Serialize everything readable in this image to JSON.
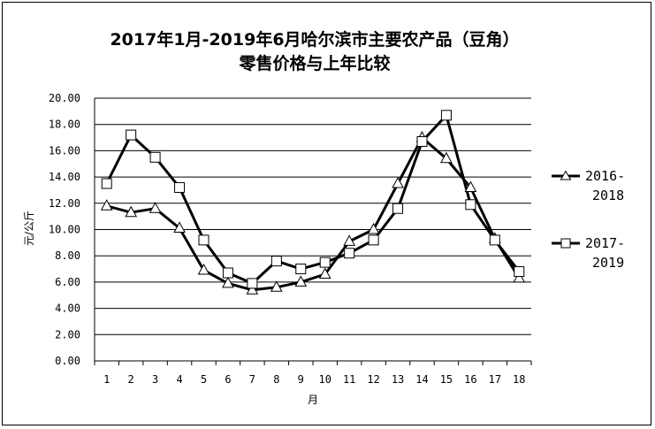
{
  "chart_data": {
    "type": "line",
    "title_line1": "2017年1月-2019年6月哈尔滨市主要农产品（豆角）",
    "title_line2": "零售价格与上年比较",
    "xlabel": "月",
    "ylabel": "元/公斤",
    "ylim": [
      0,
      20
    ],
    "yticks": [
      "0.00",
      "2.00",
      "4.00",
      "6.00",
      "8.00",
      "10.00",
      "12.00",
      "14.00",
      "16.00",
      "18.00",
      "20.00"
    ],
    "categories": [
      "1",
      "2",
      "3",
      "4",
      "5",
      "6",
      "7",
      "8",
      "9",
      "10",
      "11",
      "12",
      "13",
      "14",
      "15",
      "16",
      "17",
      "18"
    ],
    "grid": true,
    "legend_position": "right",
    "series": [
      {
        "name_line1": "2016-",
        "name_line2": "2018",
        "marker": "triangle",
        "values": [
          11.8,
          11.3,
          11.6,
          10.1,
          6.9,
          5.9,
          5.4,
          5.6,
          6.0,
          6.6,
          9.1,
          10.0,
          13.5,
          17.0,
          15.4,
          13.2,
          9.3,
          6.3
        ]
      },
      {
        "name_line1": "2017-",
        "name_line2": "2019",
        "marker": "square",
        "values": [
          13.5,
          17.2,
          15.5,
          13.2,
          9.2,
          6.7,
          5.9,
          7.6,
          7.0,
          7.5,
          8.2,
          9.2,
          11.6,
          16.7,
          18.7,
          11.9,
          9.2,
          6.8
        ]
      }
    ]
  }
}
